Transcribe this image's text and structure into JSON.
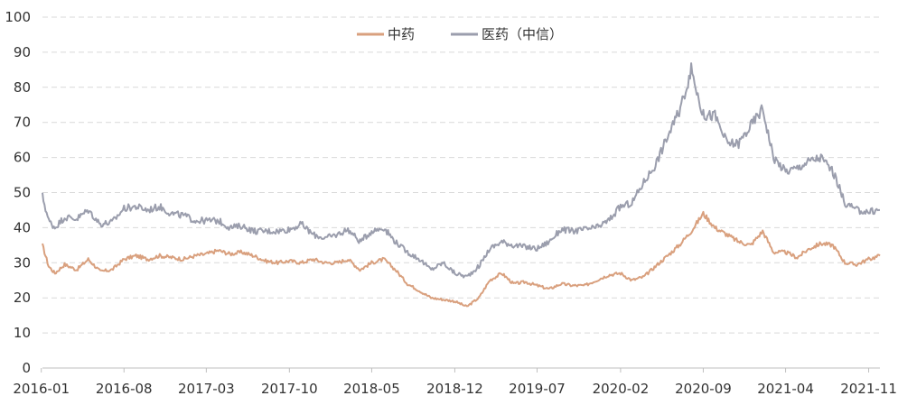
{
  "chart_data": {
    "type": "line",
    "ylim": [
      0,
      100
    ],
    "y_ticks": [
      "0",
      "10",
      "20",
      "30",
      "40",
      "50",
      "60",
      "70",
      "80",
      "90",
      "100"
    ],
    "x_ticks": [
      "2016-01",
      "2016-08",
      "2017-03",
      "2017-10",
      "2018-05",
      "2018-12",
      "2019-07",
      "2020-02",
      "2020-09",
      "2021-04",
      "2021-11"
    ],
    "x_range": [
      "2016-01-04",
      "2021-11-30"
    ],
    "grid": "horizontal dashed",
    "legend_position": "top-center",
    "series": [
      {
        "name": "中药",
        "color": "#D9A07E",
        "points": [
          [
            "2016-01-04",
            35
          ],
          [
            "2016-01-20",
            29
          ],
          [
            "2016-02-05",
            27
          ],
          [
            "2016-03-01",
            29.5
          ],
          [
            "2016-04-01",
            28
          ],
          [
            "2016-05-01",
            31
          ],
          [
            "2016-06-01",
            27.5
          ],
          [
            "2016-07-01",
            28
          ],
          [
            "2016-08-01",
            31
          ],
          [
            "2016-09-01",
            32
          ],
          [
            "2016-10-01",
            31
          ],
          [
            "2016-11-01",
            32
          ],
          [
            "2016-12-01",
            31.5
          ],
          [
            "2017-01-01",
            31
          ],
          [
            "2017-02-01",
            32
          ],
          [
            "2017-03-01",
            32.5
          ],
          [
            "2017-04-01",
            33.5
          ],
          [
            "2017-05-01",
            32.5
          ],
          [
            "2017-06-01",
            33
          ],
          [
            "2017-07-01",
            32
          ],
          [
            "2017-08-01",
            30.5
          ],
          [
            "2017-09-01",
            30
          ],
          [
            "2017-10-01",
            30.5
          ],
          [
            "2017-11-01",
            30
          ],
          [
            "2017-12-01",
            31
          ],
          [
            "2018-01-01",
            30
          ],
          [
            "2018-02-01",
            30
          ],
          [
            "2018-03-01",
            31
          ],
          [
            "2018-04-01",
            28
          ],
          [
            "2018-05-01",
            30
          ],
          [
            "2018-06-01",
            31
          ],
          [
            "2018-07-01",
            28
          ],
          [
            "2018-08-01",
            24
          ],
          [
            "2018-09-01",
            22
          ],
          [
            "2018-10-01",
            20
          ],
          [
            "2018-11-01",
            19.5
          ],
          [
            "2018-12-01",
            19
          ],
          [
            "2019-01-01",
            17.5
          ],
          [
            "2019-02-01",
            20
          ],
          [
            "2019-03-01",
            25
          ],
          [
            "2019-04-01",
            27
          ],
          [
            "2019-05-01",
            24
          ],
          [
            "2019-06-01",
            24.5
          ],
          [
            "2019-07-01",
            23.5
          ],
          [
            "2019-08-01",
            22.5
          ],
          [
            "2019-09-01",
            24
          ],
          [
            "2019-10-01",
            23.5
          ],
          [
            "2019-11-01",
            23.5
          ],
          [
            "2019-12-01",
            25
          ],
          [
            "2020-01-01",
            26.5
          ],
          [
            "2020-02-01",
            27
          ],
          [
            "2020-03-01",
            25
          ],
          [
            "2020-04-01",
            26
          ],
          [
            "2020-05-01",
            29
          ],
          [
            "2020-06-01",
            32
          ],
          [
            "2020-07-01",
            35
          ],
          [
            "2020-08-01",
            39
          ],
          [
            "2020-09-01",
            44
          ],
          [
            "2020-10-01",
            40
          ],
          [
            "2020-11-01",
            38
          ],
          [
            "2020-12-01",
            36
          ],
          [
            "2021-01-01",
            35
          ],
          [
            "2021-02-01",
            39
          ],
          [
            "2021-03-01",
            33
          ],
          [
            "2021-04-01",
            33
          ],
          [
            "2021-05-01",
            31.5
          ],
          [
            "2021-06-01",
            34
          ],
          [
            "2021-07-01",
            35.5
          ],
          [
            "2021-08-01",
            35
          ],
          [
            "2021-09-01",
            30
          ],
          [
            "2021-10-01",
            29.5
          ],
          [
            "2021-11-01",
            31
          ],
          [
            "2021-11-30",
            32
          ]
        ]
      },
      {
        "name": "医药（中信）",
        "color": "#9B9EAD",
        "points": [
          [
            "2016-01-04",
            49
          ],
          [
            "2016-01-20",
            42
          ],
          [
            "2016-02-05",
            40
          ],
          [
            "2016-03-01",
            43
          ],
          [
            "2016-04-01",
            42.5
          ],
          [
            "2016-05-01",
            45
          ],
          [
            "2016-06-01",
            41
          ],
          [
            "2016-07-01",
            41.5
          ],
          [
            "2016-08-01",
            45.5
          ],
          [
            "2016-09-01",
            46
          ],
          [
            "2016-10-01",
            45
          ],
          [
            "2016-11-01",
            46
          ],
          [
            "2016-12-01",
            44
          ],
          [
            "2017-01-01",
            43.5
          ],
          [
            "2017-02-01",
            42
          ],
          [
            "2017-03-01",
            42
          ],
          [
            "2017-04-01",
            42
          ],
          [
            "2017-05-01",
            40
          ],
          [
            "2017-06-01",
            40.5
          ],
          [
            "2017-07-01",
            39
          ],
          [
            "2017-08-01",
            39
          ],
          [
            "2017-09-01",
            39
          ],
          [
            "2017-10-01",
            39.5
          ],
          [
            "2017-11-01",
            41
          ],
          [
            "2017-12-01",
            38
          ],
          [
            "2018-01-01",
            37
          ],
          [
            "2018-02-01",
            38
          ],
          [
            "2018-03-01",
            39.5
          ],
          [
            "2018-04-01",
            36
          ],
          [
            "2018-05-01",
            39
          ],
          [
            "2018-06-01",
            40
          ],
          [
            "2018-07-01",
            36
          ],
          [
            "2018-08-01",
            33
          ],
          [
            "2018-09-01",
            31
          ],
          [
            "2018-10-01",
            28
          ],
          [
            "2018-11-01",
            30
          ],
          [
            "2018-12-01",
            27
          ],
          [
            "2019-01-01",
            26
          ],
          [
            "2019-02-01",
            29
          ],
          [
            "2019-03-01",
            34
          ],
          [
            "2019-04-01",
            36
          ],
          [
            "2019-05-01",
            35
          ],
          [
            "2019-06-01",
            34.5
          ],
          [
            "2019-07-01",
            34
          ],
          [
            "2019-08-01",
            36
          ],
          [
            "2019-09-01",
            39.5
          ],
          [
            "2019-10-01",
            39
          ],
          [
            "2019-11-01",
            39.5
          ],
          [
            "2019-12-01",
            40
          ],
          [
            "2020-01-01",
            42
          ],
          [
            "2020-02-01",
            46
          ],
          [
            "2020-03-01",
            47
          ],
          [
            "2020-04-01",
            53
          ],
          [
            "2020-05-01",
            58
          ],
          [
            "2020-06-01",
            66
          ],
          [
            "2020-07-01",
            73
          ],
          [
            "2020-08-01",
            85
          ],
          [
            "2020-09-01",
            72
          ],
          [
            "2020-10-01",
            72
          ],
          [
            "2020-11-01",
            64
          ],
          [
            "2020-12-01",
            64
          ],
          [
            "2021-01-01",
            69
          ],
          [
            "2021-02-01",
            74
          ],
          [
            "2021-03-01",
            60
          ],
          [
            "2021-04-01",
            56
          ],
          [
            "2021-05-01",
            57
          ],
          [
            "2021-06-01",
            59
          ],
          [
            "2021-07-01",
            60
          ],
          [
            "2021-08-01",
            56
          ],
          [
            "2021-09-01",
            47
          ],
          [
            "2021-10-01",
            45
          ],
          [
            "2021-11-01",
            44.5
          ],
          [
            "2021-11-30",
            45
          ]
        ]
      }
    ]
  }
}
